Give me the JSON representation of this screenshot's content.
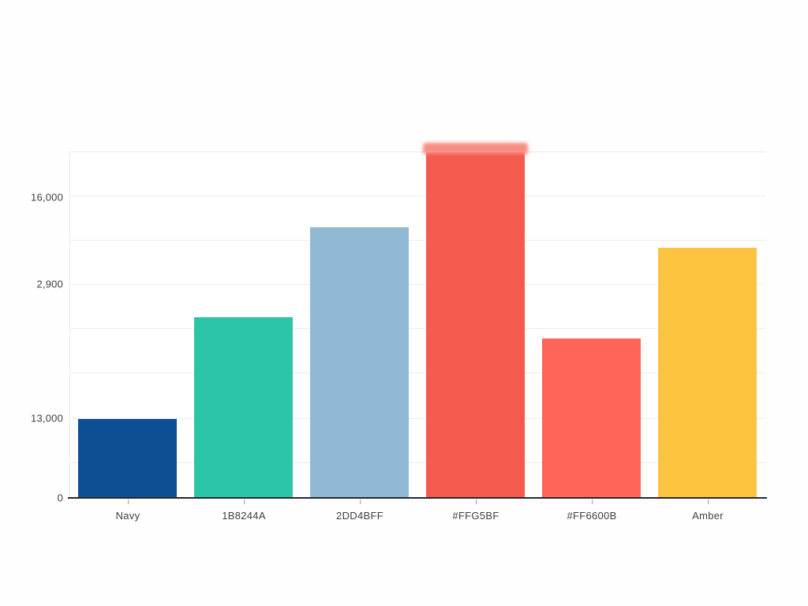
{
  "chart_data": {
    "type": "bar",
    "title": "",
    "xlabel": "",
    "ylabel": "",
    "grid": true,
    "legend": false,
    "background_color": "#ffffff",
    "axis_line_color": "#24282c",
    "ylim": [
      0,
      18500
    ],
    "ytick_labels_top_to_bottom": [
      "16,000",
      "2,900",
      "13,000",
      "0"
    ],
    "categories": [
      "Navy",
      "1B8244A",
      "2DD4BFF",
      "#FFG5BF",
      "#FF6600B",
      "Amber"
    ],
    "series": [
      {
        "name": "values",
        "values": [
          4200,
          9600,
          14400,
          18400,
          8500,
          13300
        ]
      }
    ],
    "bars": [
      {
        "label": "Navy",
        "value": 4200,
        "color": "#0d4f95"
      },
      {
        "label": "1B8244A",
        "value": 9600,
        "color": "#2cc5a9"
      },
      {
        "label": "2DD4BFF",
        "value": 14400,
        "color": "#92b9d3"
      },
      {
        "label": "#FFG5BF",
        "value": 18400,
        "color": "#f55a4e",
        "cap_color": "#f98d81"
      },
      {
        "label": "#FF6600B",
        "value": 8500,
        "color": "#fe6457"
      },
      {
        "label": "Amber",
        "value": 13300,
        "color": "#fdc441"
      }
    ]
  }
}
